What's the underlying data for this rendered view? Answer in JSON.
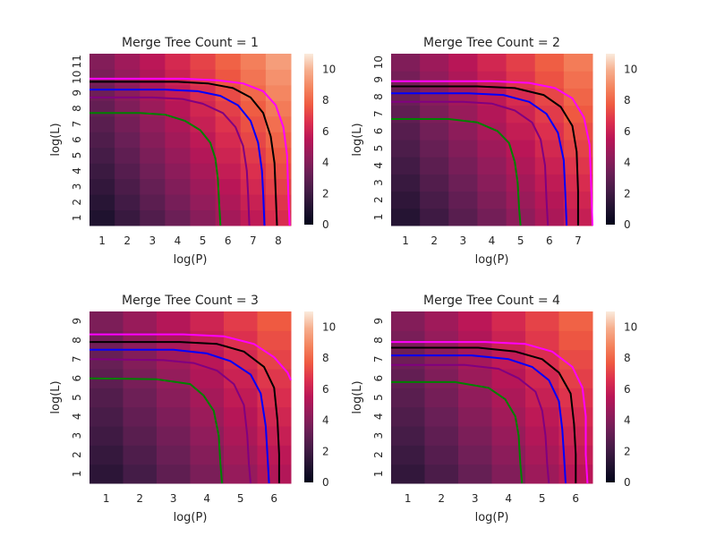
{
  "chart_data": [
    {
      "type": "heatmap",
      "title": "Merge Tree Count = 1",
      "xlabel": "log(P)",
      "ylabel": "log(L)",
      "x_ticks": [
        "1",
        "2",
        "3",
        "4",
        "5",
        "6",
        "7",
        "8"
      ],
      "y_ticks": [
        "1",
        "2",
        "3",
        "4",
        "5",
        "6",
        "7",
        "8",
        "9",
        "10",
        "11"
      ],
      "xlim": [
        0.5,
        8.5
      ],
      "ylim": [
        0.5,
        11.5
      ],
      "colorbar": {
        "ticks": [
          "0",
          "2",
          "4",
          "6",
          "8",
          "10"
        ],
        "range": [
          0,
          11
        ]
      },
      "series": [
        {
          "color": "#008000",
          "values": [
            [
              0.5,
              7.7
            ],
            [
              2.5,
              7.7
            ],
            [
              3.5,
              7.6
            ],
            [
              4.3,
              7.2
            ],
            [
              4.9,
              6.6
            ],
            [
              5.3,
              5.8
            ],
            [
              5.5,
              4.8
            ],
            [
              5.6,
              3.5
            ],
            [
              5.65,
              2.0
            ],
            [
              5.7,
              0.5
            ]
          ]
        },
        {
          "color": "#800080",
          "values": [
            [
              0.5,
              8.7
            ],
            [
              3.0,
              8.7
            ],
            [
              4.2,
              8.6
            ],
            [
              5.0,
              8.3
            ],
            [
              5.8,
              7.7
            ],
            [
              6.3,
              6.8
            ],
            [
              6.6,
              5.6
            ],
            [
              6.75,
              4.0
            ],
            [
              6.8,
              2.5
            ],
            [
              6.85,
              0.5
            ]
          ]
        },
        {
          "color": "#0000ff",
          "values": [
            [
              0.5,
              9.2
            ],
            [
              3.5,
              9.2
            ],
            [
              4.8,
              9.1
            ],
            [
              5.7,
              8.8
            ],
            [
              6.4,
              8.2
            ],
            [
              6.9,
              7.2
            ],
            [
              7.2,
              5.8
            ],
            [
              7.35,
              4.0
            ],
            [
              7.4,
              2.5
            ],
            [
              7.45,
              0.5
            ]
          ]
        },
        {
          "color": "#000000",
          "values": [
            [
              0.5,
              9.7
            ],
            [
              4.0,
              9.7
            ],
            [
              5.2,
              9.6
            ],
            [
              6.2,
              9.3
            ],
            [
              6.9,
              8.7
            ],
            [
              7.4,
              7.7
            ],
            [
              7.7,
              6.2
            ],
            [
              7.85,
              4.5
            ],
            [
              7.9,
              2.5
            ],
            [
              7.95,
              0.5
            ]
          ]
        },
        {
          "color": "#ff00ff",
          "values": [
            [
              0.5,
              9.9
            ],
            [
              4.2,
              9.9
            ],
            [
              5.6,
              9.8
            ],
            [
              6.6,
              9.6
            ],
            [
              7.4,
              9.1
            ],
            [
              7.9,
              8.2
            ],
            [
              8.2,
              6.8
            ],
            [
              8.35,
              5.0
            ],
            [
              8.4,
              2.5
            ],
            [
              8.45,
              0.5
            ]
          ]
        }
      ]
    },
    {
      "type": "heatmap",
      "title": "Merge Tree Count = 2",
      "xlabel": "log(P)",
      "ylabel": "log(L)",
      "x_ticks": [
        "1",
        "2",
        "3",
        "4",
        "5",
        "6",
        "7"
      ],
      "y_ticks": [
        "1",
        "2",
        "3",
        "4",
        "5",
        "6",
        "7",
        "8",
        "9",
        "10"
      ],
      "xlim": [
        0.5,
        7.5
      ],
      "ylim": [
        0.5,
        10.5
      ],
      "colorbar": {
        "ticks": [
          "0",
          "2",
          "4",
          "6",
          "8",
          "10"
        ],
        "range": [
          0,
          11
        ]
      },
      "series": [
        {
          "color": "#008000",
          "values": [
            [
              0.5,
              6.7
            ],
            [
              2.5,
              6.7
            ],
            [
              3.5,
              6.5
            ],
            [
              4.2,
              6.0
            ],
            [
              4.6,
              5.3
            ],
            [
              4.8,
              4.2
            ],
            [
              4.9,
              3.0
            ],
            [
              4.95,
              1.5
            ],
            [
              5.0,
              0.5
            ]
          ]
        },
        {
          "color": "#800080",
          "values": [
            [
              0.5,
              7.7
            ],
            [
              3.0,
              7.7
            ],
            [
              4.0,
              7.6
            ],
            [
              4.8,
              7.2
            ],
            [
              5.4,
              6.5
            ],
            [
              5.7,
              5.5
            ],
            [
              5.85,
              4.0
            ],
            [
              5.9,
              2.0
            ],
            [
              5.95,
              0.5
            ]
          ]
        },
        {
          "color": "#0000ff",
          "values": [
            [
              0.5,
              8.2
            ],
            [
              3.2,
              8.2
            ],
            [
              4.4,
              8.1
            ],
            [
              5.3,
              7.7
            ],
            [
              5.9,
              7.0
            ],
            [
              6.3,
              5.9
            ],
            [
              6.5,
              4.3
            ],
            [
              6.55,
              2.5
            ],
            [
              6.6,
              0.5
            ]
          ]
        },
        {
          "color": "#000000",
          "values": [
            [
              0.5,
              8.6
            ],
            [
              3.5,
              8.6
            ],
            [
              4.8,
              8.5
            ],
            [
              5.8,
              8.1
            ],
            [
              6.4,
              7.4
            ],
            [
              6.8,
              6.3
            ],
            [
              6.95,
              4.8
            ],
            [
              7.0,
              2.5
            ],
            [
              7.0,
              0.5
            ]
          ]
        },
        {
          "color": "#ff00ff",
          "values": [
            [
              0.5,
              8.9
            ],
            [
              4.0,
              8.9
            ],
            [
              5.3,
              8.8
            ],
            [
              6.2,
              8.5
            ],
            [
              6.8,
              7.9
            ],
            [
              7.2,
              6.8
            ],
            [
              7.4,
              5.2
            ],
            [
              7.45,
              3.0
            ],
            [
              7.5,
              0.5
            ]
          ]
        }
      ]
    },
    {
      "type": "heatmap",
      "title": "Merge Tree Count = 3",
      "xlabel": "log(P)",
      "ylabel": "log(L)",
      "x_ticks": [
        "1",
        "2",
        "3",
        "4",
        "5",
        "6"
      ],
      "y_ticks": [
        "1",
        "2",
        "3",
        "4",
        "5",
        "6",
        "7",
        "8",
        "9"
      ],
      "xlim": [
        0.5,
        6.5
      ],
      "ylim": [
        0.5,
        9.5
      ],
      "colorbar": {
        "ticks": [
          "0",
          "2",
          "4",
          "6",
          "8",
          "10"
        ],
        "range": [
          0,
          11
        ]
      },
      "series": [
        {
          "color": "#008000",
          "values": [
            [
              0.5,
              6.0
            ],
            [
              2.5,
              5.95
            ],
            [
              3.5,
              5.7
            ],
            [
              3.9,
              5.1
            ],
            [
              4.2,
              4.3
            ],
            [
              4.35,
              3.0
            ],
            [
              4.4,
              1.5
            ],
            [
              4.45,
              0.5
            ]
          ]
        },
        {
          "color": "#800080",
          "values": [
            [
              0.5,
              7.0
            ],
            [
              2.7,
              6.95
            ],
            [
              3.6,
              6.8
            ],
            [
              4.3,
              6.4
            ],
            [
              4.8,
              5.7
            ],
            [
              5.1,
              4.6
            ],
            [
              5.2,
              3.0
            ],
            [
              5.25,
              1.5
            ],
            [
              5.3,
              0.5
            ]
          ]
        },
        {
          "color": "#0000ff",
          "values": [
            [
              0.5,
              7.5
            ],
            [
              3.0,
              7.5
            ],
            [
              4.0,
              7.3
            ],
            [
              4.7,
              6.9
            ],
            [
              5.3,
              6.2
            ],
            [
              5.6,
              5.2
            ],
            [
              5.75,
              3.5
            ],
            [
              5.8,
              2.0
            ],
            [
              5.85,
              0.5
            ]
          ]
        },
        {
          "color": "#000000",
          "values": [
            [
              0.5,
              7.9
            ],
            [
              3.2,
              7.9
            ],
            [
              4.3,
              7.8
            ],
            [
              5.1,
              7.4
            ],
            [
              5.7,
              6.6
            ],
            [
              6.0,
              5.5
            ],
            [
              6.1,
              3.8
            ],
            [
              6.15,
              2.0
            ],
            [
              6.15,
              0.5
            ]
          ]
        },
        {
          "color": "#ff00ff",
          "values": [
            [
              0.5,
              8.3
            ],
            [
              3.3,
              8.3
            ],
            [
              4.5,
              8.2
            ],
            [
              5.4,
              7.8
            ],
            [
              6.0,
              7.1
            ],
            [
              6.4,
              6.3
            ],
            [
              6.5,
              5.9
            ]
          ]
        }
      ]
    },
    {
      "type": "heatmap",
      "title": "Merge Tree Count = 4",
      "xlabel": "log(P)",
      "ylabel": "log(L)",
      "x_ticks": [
        "1",
        "2",
        "3",
        "4",
        "5",
        "6"
      ],
      "y_ticks": [
        "1",
        "2",
        "3",
        "4",
        "5",
        "6",
        "7",
        "8",
        "9"
      ],
      "xlim": [
        0.5,
        6.5
      ],
      "ylim": [
        0.5,
        9.5
      ],
      "colorbar": {
        "ticks": [
          "0",
          "2",
          "4",
          "6",
          "8",
          "10"
        ],
        "range": [
          0,
          11
        ]
      },
      "series": [
        {
          "color": "#008000",
          "values": [
            [
              0.5,
              5.8
            ],
            [
              2.4,
              5.8
            ],
            [
              3.4,
              5.5
            ],
            [
              3.9,
              4.9
            ],
            [
              4.2,
              4.0
            ],
            [
              4.3,
              3.0
            ],
            [
              4.35,
              1.5
            ],
            [
              4.4,
              0.5
            ]
          ]
        },
        {
          "color": "#800080",
          "values": [
            [
              0.5,
              6.7
            ],
            [
              2.7,
              6.7
            ],
            [
              3.7,
              6.5
            ],
            [
              4.3,
              6.0
            ],
            [
              4.8,
              5.3
            ],
            [
              5.0,
              4.3
            ],
            [
              5.1,
              3.0
            ],
            [
              5.15,
              1.5
            ],
            [
              5.2,
              0.5
            ]
          ]
        },
        {
          "color": "#0000ff",
          "values": [
            [
              0.5,
              7.2
            ],
            [
              2.9,
              7.2
            ],
            [
              4.0,
              7.0
            ],
            [
              4.7,
              6.6
            ],
            [
              5.2,
              5.9
            ],
            [
              5.5,
              4.8
            ],
            [
              5.6,
              3.3
            ],
            [
              5.65,
              2.0
            ],
            [
              5.7,
              0.5
            ]
          ]
        },
        {
          "color": "#000000",
          "values": [
            [
              0.5,
              7.6
            ],
            [
              3.1,
              7.6
            ],
            [
              4.2,
              7.4
            ],
            [
              5.0,
              7.0
            ],
            [
              5.5,
              6.3
            ],
            [
              5.85,
              5.2
            ],
            [
              5.95,
              3.6
            ],
            [
              6.0,
              2.0
            ],
            [
              6.0,
              0.5
            ]
          ]
        },
        {
          "color": "#ff00ff",
          "values": [
            [
              0.5,
              7.9
            ],
            [
              3.3,
              7.9
            ],
            [
              4.5,
              7.8
            ],
            [
              5.3,
              7.4
            ],
            [
              5.9,
              6.6
            ],
            [
              6.2,
              5.5
            ],
            [
              6.3,
              4.0
            ],
            [
              6.3,
              2.0
            ],
            [
              6.35,
              0.5
            ]
          ]
        }
      ]
    }
  ]
}
